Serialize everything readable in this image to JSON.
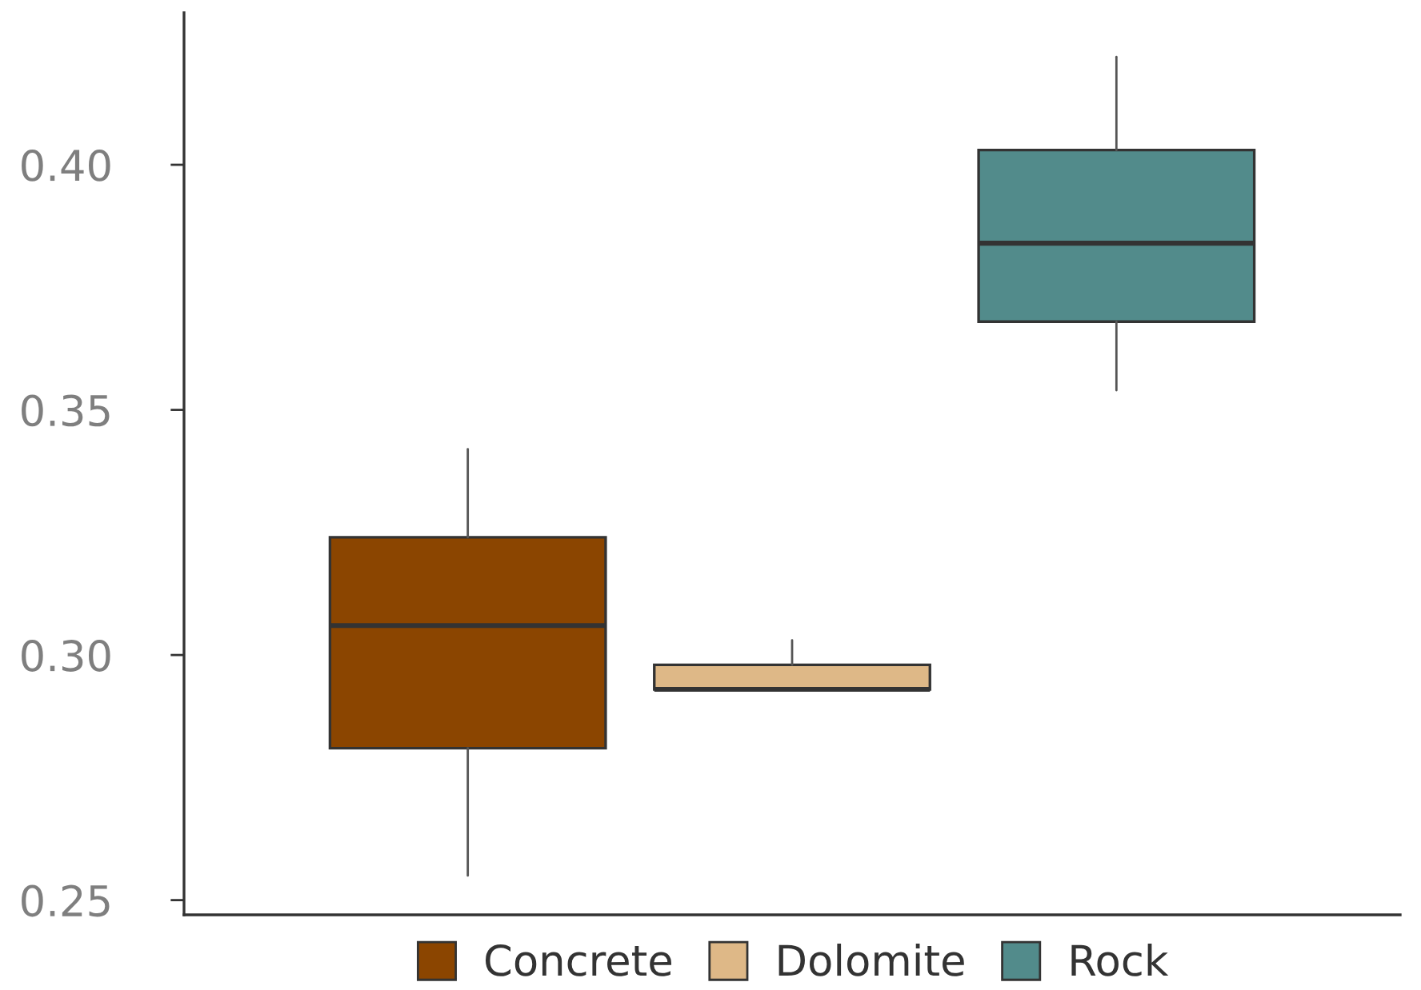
{
  "chart_data": {
    "type": "box",
    "categories": [
      null
    ],
    "series": [
      {
        "name": "Concrete",
        "color": "#8b4500",
        "boxes": [
          {
            "low": 0.255,
            "q1": 0.281,
            "median": 0.306,
            "q3": 0.324,
            "high": 0.342
          }
        ]
      },
      {
        "name": "Dolomite",
        "color": "#deb887",
        "boxes": [
          {
            "low": 0.293,
            "q1": 0.293,
            "median": 0.293,
            "q3": 0.298,
            "high": 0.303
          }
        ]
      },
      {
        "name": "Rock",
        "color": "#528b8b",
        "boxes": [
          {
            "low": 0.354,
            "q1": 0.368,
            "median": 0.384,
            "q3": 0.403,
            "high": 0.422
          }
        ]
      }
    ],
    "ylim": [
      0.247,
      0.431
    ],
    "yticks": [
      0.25,
      {
        "value": 0.3,
        "label": "0.30"
      },
      0.35,
      {
        "value": 0.4,
        "label": "0.40"
      }
    ],
    "tick_labels": "y",
    "legend": "bottom",
    "grid": false
  }
}
